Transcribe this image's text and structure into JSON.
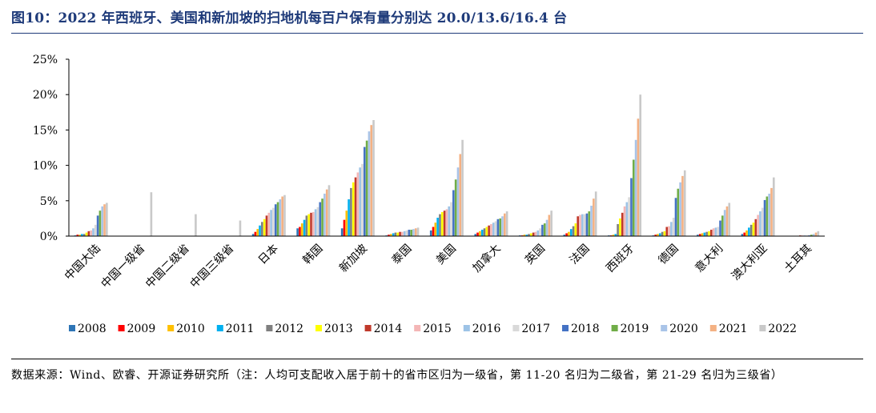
{
  "header": {
    "title": "图10：2022 年西班牙、美国和新加坡的扫地机每百户保有量分别达 20.0/13.6/16.4 台"
  },
  "footer": {
    "source": "数据来源：Wind、欧睿、开源证券研究所（注：人均可支配收入居于前十的省市区归为一级省，第 11-20 名归为二级省，第 21-29 名归为三级省）"
  },
  "chart_data": {
    "type": "bar",
    "title": "",
    "xlabel": "",
    "ylabel": "",
    "ylim": [
      0,
      25
    ],
    "yticks": [
      "0%",
      "5%",
      "10%",
      "15%",
      "20%",
      "25%"
    ],
    "grid": false,
    "legend_position": "bottom",
    "categories": [
      "中国大陆",
      "中国一级省",
      "中国二级省",
      "中国三级省",
      "日本",
      "韩国",
      "新加坡",
      "泰国",
      "美国",
      "加拿大",
      "英国",
      "法国",
      "西班牙",
      "德国",
      "意大利",
      "澳大利亚",
      "土耳其"
    ],
    "series": [
      {
        "name": "2008",
        "color": "#2e75b6",
        "values": [
          0.1,
          0,
          0,
          0,
          0.3,
          1.1,
          1.1,
          0.1,
          0.8,
          0.3,
          0.1,
          0.2,
          0.1,
          0.1,
          0.2,
          0.3,
          0.0
        ]
      },
      {
        "name": "2009",
        "color": "#ff0000",
        "values": [
          0.2,
          0,
          0,
          0,
          0.6,
          1.3,
          2.3,
          0.2,
          1.3,
          0.5,
          0.1,
          0.4,
          0.1,
          0.2,
          0.3,
          0.5,
          0.0
        ]
      },
      {
        "name": "2010",
        "color": "#ffc000",
        "values": [
          0.2,
          0,
          0,
          0,
          1.0,
          1.8,
          3.6,
          0.3,
          1.9,
          0.7,
          0.2,
          0.6,
          0.2,
          0.3,
          0.4,
          0.8,
          0.0
        ]
      },
      {
        "name": "2011",
        "color": "#00b0f0",
        "values": [
          0.3,
          0,
          0,
          0,
          1.5,
          2.3,
          5.2,
          0.4,
          2.6,
          0.9,
          0.2,
          1.0,
          0.3,
          0.4,
          0.5,
          1.2,
          0.0
        ]
      },
      {
        "name": "2012",
        "color": "#7f7f7f",
        "values": [
          0.3,
          0,
          0,
          0,
          2.0,
          2.9,
          6.8,
          0.5,
          3.1,
          1.1,
          0.3,
          1.4,
          1.7,
          0.6,
          0.6,
          1.6,
          0.0
        ]
      },
      {
        "name": "2013",
        "color": "#ffff00",
        "values": [
          0.5,
          0,
          0,
          0,
          2.4,
          3.1,
          7.6,
          0.5,
          3.4,
          1.3,
          0.4,
          1.8,
          2.5,
          0.7,
          0.7,
          1.9,
          0.0
        ]
      },
      {
        "name": "2014",
        "color": "#c0392b",
        "values": [
          0.7,
          0,
          0,
          0,
          2.9,
          3.3,
          8.3,
          0.6,
          3.6,
          1.5,
          0.5,
          2.8,
          3.3,
          1.3,
          0.9,
          2.4,
          0.1
        ]
      },
      {
        "name": "2015",
        "color": "#f4b6b6",
        "values": [
          0.8,
          0,
          0,
          0,
          3.3,
          3.4,
          9.0,
          0.6,
          3.8,
          1.7,
          0.6,
          3.0,
          4.2,
          1.4,
          1.1,
          3.0,
          0.1
        ]
      },
      {
        "name": "2016",
        "color": "#9dc3e6",
        "values": [
          1.1,
          0,
          0,
          0,
          3.7,
          3.8,
          9.7,
          0.7,
          4.2,
          1.9,
          0.8,
          3.1,
          4.8,
          2.0,
          1.2,
          3.5,
          0.1
        ]
      },
      {
        "name": "2017",
        "color": "#d9d9d9",
        "values": [
          1.6,
          0,
          0,
          0,
          4.0,
          4.1,
          10.2,
          0.8,
          4.8,
          2.1,
          1.1,
          3.1,
          5.5,
          2.6,
          1.3,
          4.0,
          0.1
        ]
      },
      {
        "name": "2018",
        "color": "#4472c4",
        "values": [
          2.9,
          0,
          0,
          0,
          4.5,
          4.8,
          12.6,
          0.9,
          6.5,
          2.4,
          1.6,
          3.2,
          8.2,
          5.4,
          2.2,
          5.1,
          0.1
        ]
      },
      {
        "name": "2019",
        "color": "#70ad47",
        "values": [
          3.6,
          0,
          0,
          0,
          4.8,
          5.3,
          13.5,
          0.9,
          8.0,
          2.5,
          1.8,
          3.5,
          10.8,
          6.7,
          2.9,
          5.6,
          0.2
        ]
      },
      {
        "name": "2020",
        "color": "#a9c4e8",
        "values": [
          4.2,
          0,
          0,
          0,
          5.2,
          6.0,
          14.8,
          1.0,
          9.7,
          2.8,
          2.3,
          4.3,
          13.6,
          7.6,
          3.7,
          6.0,
          0.3
        ]
      },
      {
        "name": "2021",
        "color": "#f4b183",
        "values": [
          4.5,
          0,
          0,
          0,
          5.6,
          6.6,
          15.7,
          1.1,
          11.6,
          3.2,
          3.0,
          5.3,
          16.6,
          8.5,
          4.2,
          6.8,
          0.5
        ]
      },
      {
        "name": "2022",
        "color": "#c9c9c9",
        "values": [
          4.7,
          6.2,
          3.1,
          2.2,
          5.8,
          7.2,
          16.4,
          1.2,
          13.6,
          3.5,
          3.6,
          6.3,
          20.0,
          9.3,
          4.7,
          8.3,
          0.7
        ]
      }
    ]
  }
}
